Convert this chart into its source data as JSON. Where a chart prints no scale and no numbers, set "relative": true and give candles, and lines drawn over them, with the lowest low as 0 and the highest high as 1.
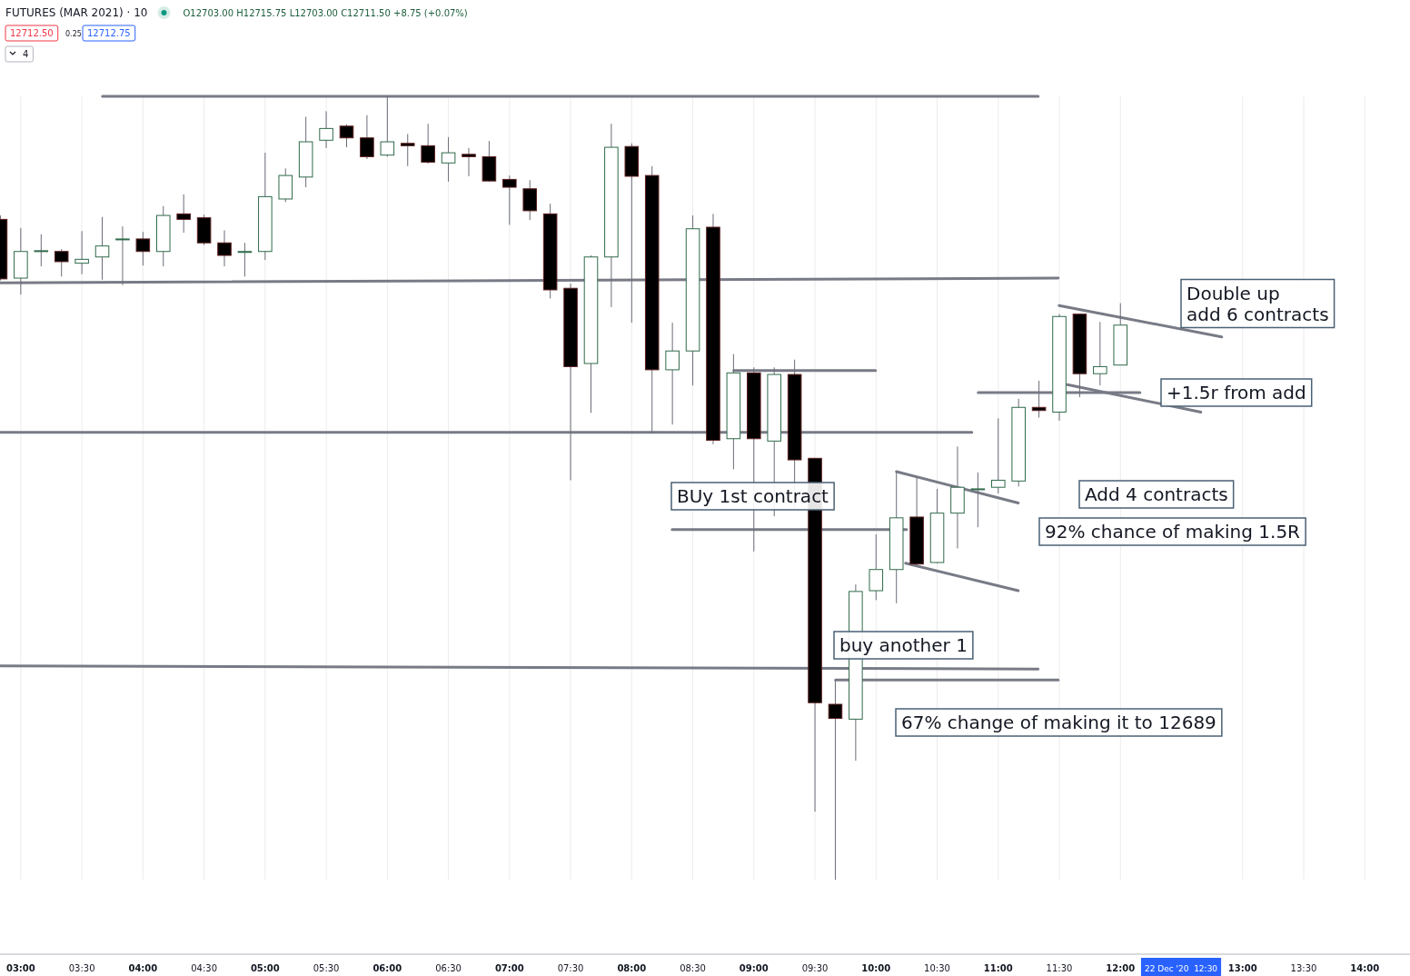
{
  "chart_data": {
    "type": "candlestick",
    "title": "FUTURES (MAR 2021) · 10",
    "subtitle": "O12703.00 H12715.75 L12703.00 C12711.50 +8.75 (+0.07%)",
    "relative": true,
    "tick_labels": "x",
    "grid": "x",
    "xlim": [
      2.83,
      14.37
    ],
    "xticks": [
      {
        "value": 3,
        "label": "03:00"
      },
      {
        "value": 3.5,
        "label": "03:30"
      },
      {
        "value": 4,
        "label": "04:00"
      },
      {
        "value": 4.5,
        "label": "04:30"
      },
      {
        "value": 5,
        "label": "05:00"
      },
      {
        "value": 5.5,
        "label": "05:30"
      },
      {
        "value": 6,
        "label": "06:00"
      },
      {
        "value": 6.5,
        "label": "06:30"
      },
      {
        "value": 7,
        "label": "07:00"
      },
      {
        "value": 7.5,
        "label": "07:30"
      },
      {
        "value": 8,
        "label": "08:00"
      },
      {
        "value": 8.5,
        "label": "08:30"
      },
      {
        "value": 9,
        "label": "09:00"
      },
      {
        "value": 9.5,
        "label": "09:30"
      },
      {
        "value": 10,
        "label": "10:00"
      },
      {
        "value": 10.5,
        "label": "10:30"
      },
      {
        "value": 11,
        "label": "11:00"
      },
      {
        "value": 11.5,
        "label": "11:30"
      },
      {
        "value": 12,
        "label": "12:00"
      },
      {
        "value": 13,
        "label": "13:00"
      },
      {
        "value": 13.5,
        "label": "13:30"
      },
      {
        "value": 14,
        "label": "14:00"
      }
    ],
    "x": [
      2.8333,
      3,
      3.1667,
      3.3333,
      3.5,
      3.6667,
      3.8333,
      4,
      4.1667,
      4.3333,
      4.5,
      4.6667,
      4.8333,
      5,
      5.1667,
      5.3333,
      5.5,
      5.6667,
      5.8333,
      6,
      6.1667,
      6.3333,
      6.5,
      6.6667,
      6.8333,
      7,
      7.1667,
      7.3333,
      7.5,
      7.6667,
      7.8333,
      8,
      8.1667,
      8.3333,
      8.5,
      8.6667,
      8.8333,
      9,
      9.1667,
      9.3333,
      9.5,
      9.6667,
      9.8333,
      10,
      10.1667,
      10.3333,
      10.5,
      10.6667,
      10.8333,
      11,
      11.1667,
      11.3333,
      11.5,
      11.6667,
      11.8333,
      12
    ],
    "ohlc": [
      [
        0.843,
        0.848,
        0.765,
        0.767
      ],
      [
        0.768,
        0.832,
        0.747,
        0.802
      ],
      [
        0.803,
        0.824,
        0.783,
        0.803
      ],
      [
        0.802,
        0.805,
        0.77,
        0.789
      ],
      [
        0.787,
        0.828,
        0.773,
        0.792
      ],
      [
        0.795,
        0.846,
        0.766,
        0.809
      ],
      [
        0.818,
        0.834,
        0.759,
        0.818
      ],
      [
        0.818,
        0.827,
        0.784,
        0.802
      ],
      [
        0.802,
        0.86,
        0.783,
        0.848
      ],
      [
        0.85,
        0.875,
        0.826,
        0.843
      ],
      [
        0.845,
        0.849,
        0.81,
        0.813
      ],
      [
        0.813,
        0.829,
        0.783,
        0.797
      ],
      [
        0.802,
        0.813,
        0.77,
        0.802
      ],
      [
        0.802,
        0.928,
        0.791,
        0.872
      ],
      [
        0.869,
        0.908,
        0.865,
        0.899
      ],
      [
        0.897,
        0.974,
        0.884,
        0.942
      ],
      [
        0.944,
        0.981,
        0.934,
        0.959
      ],
      [
        0.962,
        0.964,
        0.935,
        0.947
      ],
      [
        0.947,
        0.976,
        0.92,
        0.923
      ],
      [
        0.925,
        1.0,
        0.923,
        0.942
      ],
      [
        0.94,
        0.952,
        0.911,
        0.937
      ],
      [
        0.937,
        0.965,
        0.914,
        0.916
      ],
      [
        0.915,
        0.948,
        0.891,
        0.928
      ],
      [
        0.926,
        0.934,
        0.898,
        0.923
      ],
      [
        0.923,
        0.943,
        0.891,
        0.892
      ],
      [
        0.894,
        0.899,
        0.836,
        0.884
      ],
      [
        0.882,
        0.893,
        0.842,
        0.854
      ],
      [
        0.85,
        0.863,
        0.742,
        0.753
      ],
      [
        0.755,
        0.761,
        0.51,
        0.655
      ],
      [
        0.659,
        0.797,
        0.596,
        0.795
      ],
      [
        0.795,
        0.965,
        0.731,
        0.935
      ],
      [
        0.936,
        0.94,
        0.711,
        0.898
      ],
      [
        0.899,
        0.911,
        0.57,
        0.651
      ],
      [
        0.651,
        0.711,
        0.581,
        0.675
      ],
      [
        0.675,
        0.848,
        0.631,
        0.831
      ],
      [
        0.833,
        0.85,
        0.556,
        0.561
      ],
      [
        0.563,
        0.671,
        0.524,
        0.647
      ],
      [
        0.647,
        0.654,
        0.419,
        0.563
      ],
      [
        0.56,
        0.654,
        0.464,
        0.645
      ],
      [
        0.645,
        0.664,
        0.473,
        0.536
      ],
      [
        0.538,
        0.538,
        0.087,
        0.226
      ],
      [
        0.224,
        0.255,
        0,
        0.206
      ],
      [
        0.205,
        0.377,
        0.152,
        0.368
      ],
      [
        0.369,
        0.441,
        0.357,
        0.396
      ],
      [
        0.396,
        0.52,
        0.353,
        0.462
      ],
      [
        0.463,
        0.514,
        0.401,
        0.403
      ],
      [
        0.405,
        0.499,
        0.404,
        0.468
      ],
      [
        0.468,
        0.553,
        0.423,
        0.501
      ],
      [
        0.499,
        0.52,
        0.45,
        0.499
      ],
      [
        0.501,
        0.589,
        0.493,
        0.51
      ],
      [
        0.509,
        0.614,
        0.502,
        0.603
      ],
      [
        0.603,
        0.637,
        0.59,
        0.599
      ],
      [
        0.597,
        0.722,
        0.586,
        0.719
      ],
      [
        0.722,
        0.722,
        0.616,
        0.646
      ],
      [
        0.646,
        0.712,
        0.631,
        0.655
      ],
      [
        0.657,
        0.736,
        0.657,
        0.708
      ]
    ],
    "series": [
      {
        "type": "line",
        "color": "#787b86",
        "x": [
          3.669,
          11.327
        ],
        "values": [
          1.0,
          1.0
        ]
      },
      {
        "type": "line",
        "color": "#787b86",
        "x": [
          2.83,
          11.491
        ],
        "values": [
          0.762,
          0.768
        ]
      },
      {
        "type": "line",
        "color": "#787b86",
        "x": [
          2.83,
          10.784
        ],
        "values": [
          0.571,
          0.571
        ]
      },
      {
        "type": "line",
        "color": "#787b86",
        "x": [
          2.83,
          11.327
        ],
        "values": [
          0.273,
          0.269
        ]
      },
      {
        "type": "line",
        "color": "#787b86",
        "x": [
          8.836,
          9.996
        ],
        "values": [
          0.65,
          0.65
        ]
      },
      {
        "type": "line",
        "color": "#787b86",
        "x": [
          8.331,
          10.25
        ],
        "values": [
          0.447,
          0.447
        ]
      },
      {
        "type": "line",
        "color": "#787b86",
        "x": [
          9.669,
          11.491
        ],
        "values": [
          0.255,
          0.255
        ]
      },
      {
        "type": "line",
        "color": "#787b86",
        "x": [
          10.167,
          11.164
        ],
        "values": [
          0.521,
          0.481
        ]
      },
      {
        "type": "line",
        "color": "#787b86",
        "x": [
          10.242,
          11.164
        ],
        "values": [
          0.404,
          0.369
        ]
      },
      {
        "type": "line",
        "color": "#787b86",
        "x": [
          10.836,
          12.16
        ],
        "values": [
          0.622,
          0.622
        ]
      },
      {
        "type": "line",
        "color": "#787b86",
        "x": [
          11.498,
          12.829
        ],
        "values": [
          0.733,
          0.693
        ]
      },
      {
        "type": "line",
        "color": "#787b86",
        "x": [
          11.565,
          12.658
        ],
        "values": [
          0.632,
          0.597
        ]
      }
    ],
    "annotations": [
      "12712.50",
      "0.25",
      "12712.75",
      "4",
      "22 Dec '20  12:30",
      "BUy 1st contract",
      "buy another 1",
      "67% change of making it to 12689",
      "Add 4 contracts",
      "92% chance of making 1.5R",
      "+1.5r from add",
      "Double up\nadd 6 contracts"
    ]
  }
}
